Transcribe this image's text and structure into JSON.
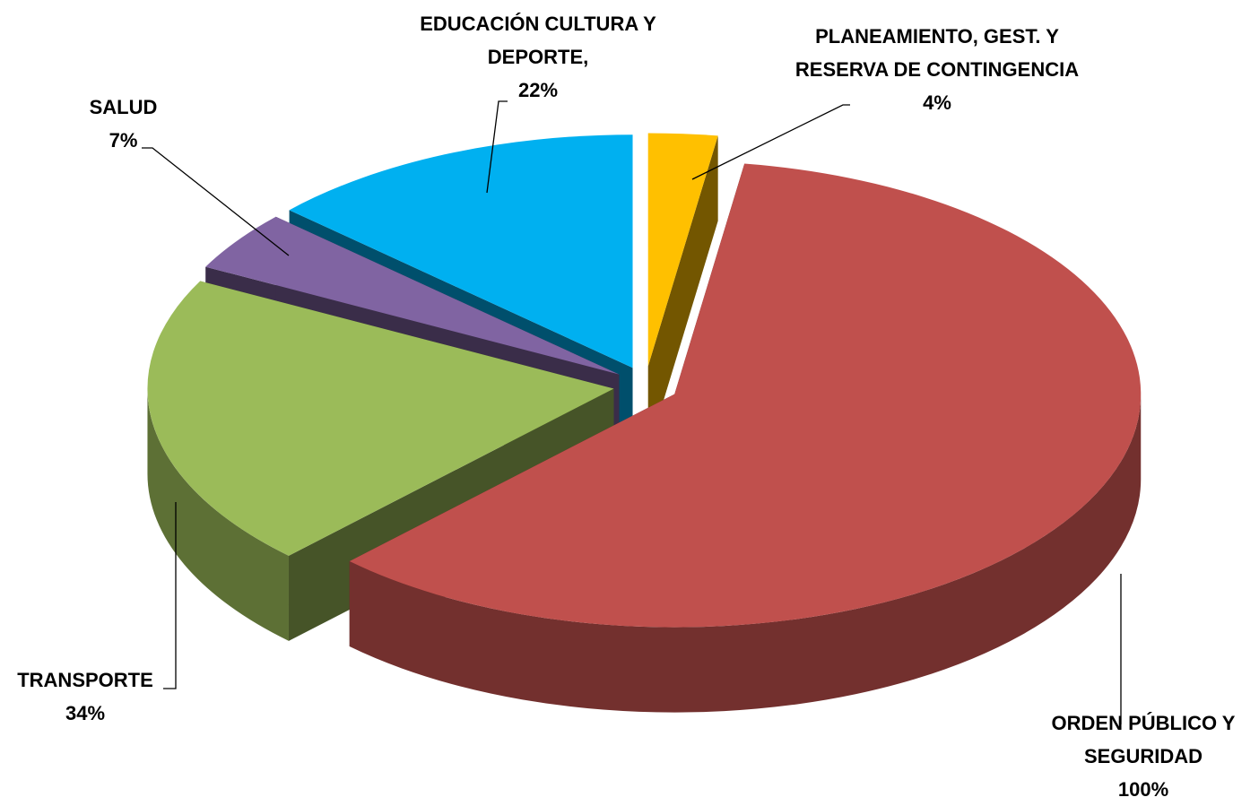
{
  "chart_data": {
    "type": "pie3d",
    "categories": [
      "PLANEAMIENTO, GEST. Y RESERVA DE CONTINGENCIA",
      "ORDEN PÚBLICO Y SEGURIDAD",
      "TRANSPORTE",
      "SALUD",
      "EDUCACIÓN CULTURA Y DEPORTE,"
    ],
    "values": [
      4,
      100,
      34,
      7,
      22
    ],
    "value_labels": [
      "4%",
      "100%",
      "34%",
      "7%",
      "22%"
    ],
    "colors": [
      "#ffc000",
      "#c0504d",
      "#9bbb59",
      "#8064a2",
      "#00b0f0"
    ],
    "exploded": true
  }
}
